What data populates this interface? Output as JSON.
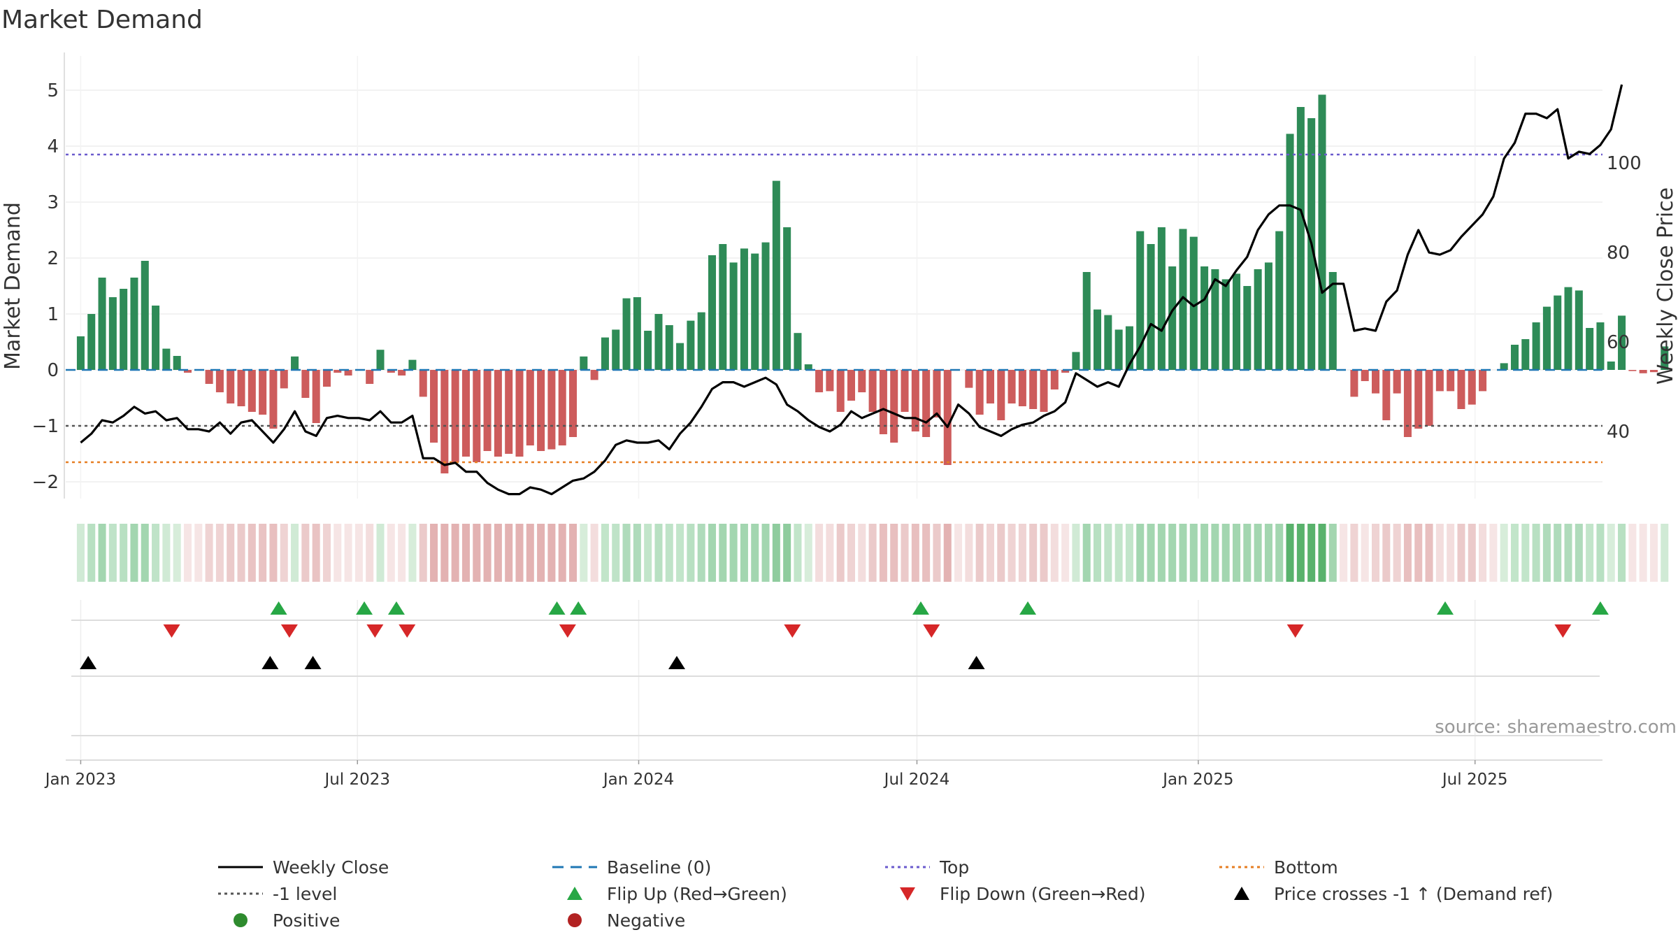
{
  "chart_data": {
    "type": "bar",
    "title": "Market Demand",
    "ylabel": "Market Demand",
    "y2label": "Weekly Close Price",
    "ylim": [
      -2.3,
      5.3
    ],
    "y2lim": [
      25,
      120
    ],
    "yticks": [
      "−2",
      "−1",
      "0",
      "1",
      "2",
      "3",
      "4",
      "5"
    ],
    "ytick_values": [
      -2,
      -1,
      0,
      1,
      2,
      3,
      4,
      5
    ],
    "y2ticks": [
      "40",
      "60",
      "80",
      "100"
    ],
    "y2tick_values": [
      40,
      60,
      80,
      100
    ],
    "x_range_weeks": [
      -1.4,
      142.2
    ],
    "xticks": [
      {
        "label": "Jan 2023",
        "week": 0
      },
      {
        "label": "Jul 2023",
        "week": 25.86
      },
      {
        "label": "Jan 2024",
        "week": 52.14
      },
      {
        "label": "Jul 2024",
        "week": 78.14
      },
      {
        "label": "Jan 2025",
        "week": 104.43
      },
      {
        "label": "Jul 2025",
        "week": 130.29
      }
    ],
    "demand": [
      0.6,
      1.0,
      1.65,
      1.3,
      1.45,
      1.65,
      1.95,
      1.15,
      0.38,
      0.25,
      -0.05,
      0.0,
      -0.25,
      -0.4,
      -0.6,
      -0.65,
      -0.75,
      -0.8,
      -1.05,
      -0.33,
      0.24,
      -0.5,
      -0.95,
      -0.3,
      -0.05,
      -0.1,
      0.0,
      -0.25,
      0.36,
      -0.05,
      -0.1,
      0.18,
      -0.48,
      -1.3,
      -1.85,
      -1.65,
      -1.55,
      -1.65,
      -1.45,
      -1.55,
      -1.5,
      -1.55,
      -1.35,
      -1.45,
      -1.42,
      -1.35,
      -1.2,
      0.24,
      -0.18,
      0.58,
      0.72,
      1.28,
      1.3,
      0.7,
      1.0,
      0.8,
      0.48,
      0.88,
      1.03,
      2.05,
      2.25,
      1.92,
      2.17,
      2.08,
      2.28,
      3.38,
      2.55,
      0.66,
      0.1,
      -0.4,
      -0.38,
      -0.75,
      -0.55,
      -0.4,
      -0.75,
      -1.15,
      -1.3,
      -0.75,
      -1.1,
      -1.2,
      -0.85,
      -1.7,
      0.0,
      -0.32,
      -0.8,
      -0.6,
      -0.9,
      -0.6,
      -0.65,
      -0.7,
      -0.75,
      -0.35,
      -0.05,
      0.32,
      1.75,
      1.08,
      0.98,
      0.72,
      0.78,
      2.48,
      2.25,
      2.55,
      1.85,
      2.52,
      2.38,
      1.85,
      1.8,
      1.62,
      1.72,
      1.5,
      1.8,
      1.92,
      2.48,
      4.22,
      4.7,
      4.5,
      4.92,
      1.75,
      0.0,
      -0.48,
      -0.2,
      -0.42,
      -0.9,
      -0.42,
      -1.2,
      -1.05,
      -1.0,
      -0.38,
      -0.38,
      -0.7,
      -0.62,
      -0.38,
      0.0,
      0.12,
      0.45,
      0.55,
      0.85,
      1.13,
      1.33,
      1.48,
      1.42,
      0.75,
      0.85,
      0.15,
      0.97,
      -0.02,
      -0.06,
      -0.04,
      0.42
    ],
    "price": [
      37.5,
      39.5,
      42.5,
      42.0,
      43.5,
      45.5,
      44.0,
      44.5,
      42.5,
      43.0,
      40.5,
      40.5,
      40.0,
      42.0,
      39.5,
      42.0,
      42.5,
      40.0,
      37.5,
      40.5,
      44.5,
      40.0,
      39.0,
      43.0,
      43.5,
      43.0,
      43.0,
      42.5,
      44.5,
      42.0,
      42.0,
      43.5,
      34.0,
      34.0,
      32.5,
      33.0,
      31.0,
      31.0,
      28.5,
      27.0,
      26.0,
      26.0,
      27.5,
      27.0,
      26.0,
      27.5,
      29.0,
      29.5,
      31.0,
      33.5,
      37.0,
      38.0,
      37.5,
      37.5,
      38.0,
      36.0,
      39.5,
      42.0,
      45.5,
      49.5,
      51.0,
      51.0,
      50.0,
      51.0,
      52.0,
      50.5,
      46.0,
      44.5,
      42.5,
      41.0,
      40.0,
      41.5,
      44.5,
      43.0,
      44.0,
      45.0,
      44.0,
      43.0,
      43.0,
      42.0,
      44.0,
      41.0,
      46.0,
      44.0,
      41.0,
      40.0,
      39.0,
      40.5,
      41.5,
      42.0,
      43.5,
      44.5,
      46.5,
      53.0,
      51.5,
      50.0,
      51.0,
      50.0,
      55.0,
      59.0,
      64.0,
      62.5,
      67.0,
      70.0,
      68.0,
      69.5,
      74.0,
      72.5,
      76.0,
      79.0,
      85.0,
      88.5,
      90.5,
      90.5,
      89.5,
      82.0,
      71.0,
      73.0,
      73.0,
      62.5,
      63.0,
      62.5,
      69.0,
      71.5,
      79.5,
      85.0,
      80.0,
      79.5,
      80.5,
      83.5,
      86.0,
      88.5,
      92.5,
      101.0,
      104.5,
      111.0,
      111.0,
      110.0,
      112.0,
      101.0,
      102.5,
      102.0,
      104.0,
      107.5,
      117.5
    ],
    "heat_colors": [
      "#d0ead5",
      "#b8e0c2",
      "#a3d6b0",
      "#bfe3c8",
      "#b8e0c2",
      "#a3d6b0",
      "#a3d6b0",
      "#bfe3c8",
      "#d0ead5",
      "#d7edda",
      "#f6e5e5",
      "#f6e5e5",
      "#efd3d3",
      "#efd3d3",
      "#ebcaca",
      "#ebcaca",
      "#e9c3c3",
      "#e9c3c3",
      "#e8bfbf",
      "#efd3d3",
      "#d0ead5",
      "#ebcaca",
      "#e9c3c3",
      "#efd3d3",
      "#f6e5e5",
      "#f6e5e5",
      "#f6e5e5",
      "#f3dddd",
      "#d0ead5",
      "#f6e5e5",
      "#f6e5e5",
      "#d7edda",
      "#ebcaca",
      "#e3b2b2",
      "#e3b2b2",
      "#e3b2b2",
      "#e3b2b2",
      "#e3b2b2",
      "#e3b2b2",
      "#e3b2b2",
      "#e3b2b2",
      "#e3b2b2",
      "#e3b2b2",
      "#e3b2b2",
      "#e3b2b2",
      "#e3b2b2",
      "#e3b2b2",
      "#d7edda",
      "#f3dddd",
      "#c2e5ca",
      "#bfe3c8",
      "#afdbbb",
      "#afdbbb",
      "#c2e5ca",
      "#b8e0c2",
      "#bfe3c8",
      "#c2e5ca",
      "#b8e0c2",
      "#afdbbb",
      "#a3d6b0",
      "#a3d6b0",
      "#a3d6b0",
      "#a3d6b0",
      "#a3d6b0",
      "#a3d6b0",
      "#8fcc9e",
      "#8fcc9e",
      "#c2e5ca",
      "#d7edda",
      "#f3dddd",
      "#f3dddd",
      "#ebcaca",
      "#efd3d3",
      "#f3dddd",
      "#ebcaca",
      "#e8bfbf",
      "#e8bfbf",
      "#ebcaca",
      "#e8bfbf",
      "#e8bfbf",
      "#ebcaca",
      "#e3b2b2",
      "#f6e5e5",
      "#f3dddd",
      "#ebcaca",
      "#efd3d3",
      "#ebcaca",
      "#efd3d3",
      "#efd3d3",
      "#ebcaca",
      "#ebcaca",
      "#f3dddd",
      "#f6e5e5",
      "#d0ead5",
      "#a3d6b0",
      "#b8e0c2",
      "#bfe3c8",
      "#c2e5ca",
      "#c2e5ca",
      "#a3d6b0",
      "#a3d6b0",
      "#a3d6b0",
      "#a3d6b0",
      "#a3d6b0",
      "#a3d6b0",
      "#a3d6b0",
      "#a3d6b0",
      "#a3d6b0",
      "#a3d6b0",
      "#a3d6b0",
      "#a3d6b0",
      "#a3d6b0",
      "#a3d6b0",
      "#59b26c",
      "#59b26c",
      "#59b26c",
      "#59b26c",
      "#a3d6b0",
      "#f6e5e5",
      "#efd3d3",
      "#f6e5e5",
      "#efd3d3",
      "#ebcaca",
      "#efd3d3",
      "#e8bfbf",
      "#e8bfbf",
      "#e8bfbf",
      "#f3dddd",
      "#f3dddd",
      "#ebcaca",
      "#ebcaca",
      "#f3dddd",
      "#f6e5e5",
      "#d7edda",
      "#c2e5ca",
      "#c2e5ca",
      "#b8e0c2",
      "#afdbbb",
      "#afdbbb",
      "#afdbbb",
      "#afdbbb",
      "#c2e5ca",
      "#b8e0c2",
      "#d7edda",
      "#b8e0c2",
      "#f6e5e5",
      "#f6e5e5",
      "#f6e5e5",
      "#d0ead5"
    ],
    "top_level": 3.85,
    "minus1_level": -1,
    "bottom_level": -1.65,
    "flip_up_weeks": [
      18.5,
      26.5,
      29.5,
      44.5,
      46.5,
      78.5,
      88.5,
      127.5,
      142.0
    ],
    "flip_down_weeks": [
      8.5,
      19.5,
      27.5,
      30.5,
      45.5,
      66.5,
      79.5,
      113.5,
      138.5
    ],
    "price_cross_weeks": [
      0.7,
      17.7,
      21.7,
      55.7,
      83.7
    ],
    "source": "source: sharemaestro.com",
    "colors": {
      "positive": "#2e8b57",
      "negative": "#cd5c5c",
      "price": "#000000",
      "baseline": "#1f77b4",
      "top": "#6a5acd",
      "minus1": "#555555",
      "bottom": "#e67e22",
      "flip_up": "#27a745",
      "flip_down": "#d62728",
      "cross": "#000000",
      "pos_marker": "#2e8b2e",
      "neg_marker": "#b22222"
    },
    "legend": [
      {
        "label": "Weekly Close",
        "key": "close"
      },
      {
        "label": "Baseline (0)",
        "key": "baseline"
      },
      {
        "label": "Top",
        "key": "top"
      },
      {
        "label": "Bottom",
        "key": "bottom"
      },
      {
        "label": "-1 level",
        "key": "minus1"
      },
      {
        "label": "Flip Up (Red→Green)",
        "key": "flipup"
      },
      {
        "label": "Flip Down (Green→Red)",
        "key": "flipdown"
      },
      {
        "label": "Price crosses -1 ↑ (Demand ref)",
        "key": "cross"
      },
      {
        "label": "Positive",
        "key": "positive"
      },
      {
        "label": "Negative",
        "key": "negative"
      }
    ]
  }
}
